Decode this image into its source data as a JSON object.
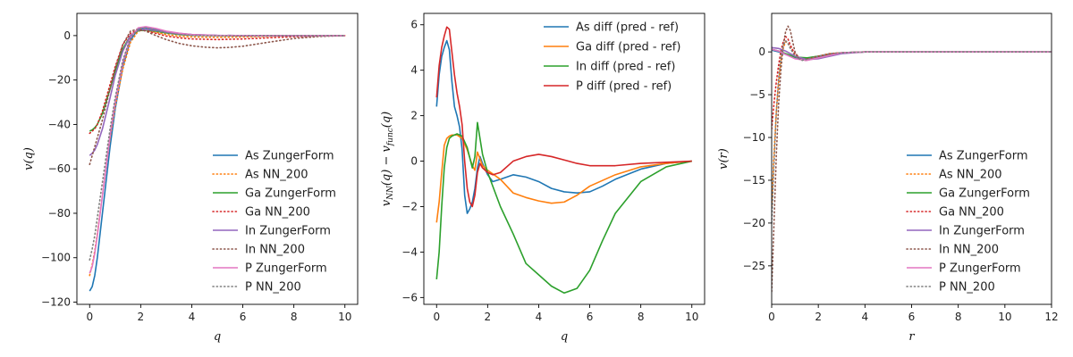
{
  "colors": {
    "blue": "#1f77b4",
    "orange": "#ff7f0e",
    "green": "#2ca02c",
    "red": "#d62728",
    "purple": "#9467bd",
    "brown": "#8c564b",
    "pink": "#e377c2",
    "gray": "#7f7f7f"
  },
  "chart_data": [
    {
      "type": "line",
      "xlabel": "q",
      "ylabel": "v(q)",
      "xlim": [
        -0.5,
        10.5
      ],
      "ylim": [
        -121,
        10
      ],
      "xticks": [
        0,
        2,
        4,
        6,
        8,
        10
      ],
      "yticks": [
        -120,
        -100,
        -80,
        -60,
        -40,
        -20,
        0
      ],
      "legend_position": "lower-right",
      "grid": false,
      "series": [
        {
          "name": "As ZungerForm",
          "color": "blue",
          "dash": "solid",
          "x": [
            0,
            0.1,
            0.2,
            0.3,
            0.5,
            0.8,
            1.0,
            1.3,
            1.6,
            1.9,
            2.2,
            2.6,
            3.0,
            3.5,
            4,
            5,
            6,
            7,
            8,
            9,
            10
          ],
          "y": [
            -115,
            -113,
            -108,
            -100,
            -80,
            -50,
            -33,
            -14,
            -2,
            3,
            3.5,
            2.8,
            1.8,
            1.0,
            0.5,
            0.1,
            0,
            0,
            0,
            0,
            0
          ]
        },
        {
          "name": "As NN_200",
          "color": "orange",
          "dash": "dotted",
          "x": [
            0,
            0.1,
            0.2,
            0.3,
            0.5,
            0.8,
            1.0,
            1.3,
            1.6,
            1.9,
            2.2,
            2.6,
            3.0,
            3.5,
            4,
            5,
            6,
            7,
            8,
            9,
            10
          ],
          "y": [
            -108,
            -103,
            -97,
            -89,
            -72,
            -46,
            -32,
            -15,
            -3,
            2,
            2.5,
            1.5,
            0.5,
            -0.3,
            -0.6,
            -0.8,
            -0.6,
            -0.3,
            -0.1,
            0,
            0
          ]
        },
        {
          "name": "Ga ZungerForm",
          "color": "green",
          "dash": "solid",
          "x": [
            0,
            0.1,
            0.2,
            0.3,
            0.5,
            0.8,
            1.0,
            1.3,
            1.6,
            1.9,
            2.2,
            2.6,
            3.0,
            3.5,
            4,
            5,
            6,
            7,
            8,
            9,
            10
          ],
          "y": [
            -43,
            -42.5,
            -41.5,
            -40,
            -35,
            -24,
            -16,
            -6,
            0,
            2.2,
            2.5,
            2,
            1.2,
            0.5,
            0.2,
            0,
            0,
            0,
            0,
            0,
            0
          ]
        },
        {
          "name": "Ga NN_200",
          "color": "red",
          "dash": "dotted",
          "x": [
            0,
            0.1,
            0.2,
            0.3,
            0.5,
            0.8,
            1.0,
            1.3,
            1.6,
            1.9,
            2.2,
            2.6,
            3.0,
            3.5,
            4,
            5,
            6,
            7,
            8,
            9,
            10
          ],
          "y": [
            -44,
            -43,
            -42,
            -40,
            -34,
            -22,
            -14,
            -4,
            1,
            2.5,
            2.2,
            1.0,
            -0.2,
            -1.0,
            -1.5,
            -1.8,
            -1.5,
            -1,
            -0.5,
            -0.2,
            0
          ]
        },
        {
          "name": "In ZungerForm",
          "color": "purple",
          "dash": "solid",
          "x": [
            0,
            0.1,
            0.2,
            0.3,
            0.5,
            0.8,
            1.0,
            1.3,
            1.6,
            1.9,
            2.2,
            2.6,
            3.0,
            3.5,
            4,
            5,
            6,
            7,
            8,
            9,
            10
          ],
          "y": [
            -54,
            -53,
            -51.5,
            -49,
            -42,
            -28,
            -18,
            -7,
            0,
            2.5,
            2.8,
            2.3,
            1.5,
            0.8,
            0.3,
            0.1,
            0,
            0,
            0,
            0,
            0
          ]
        },
        {
          "name": "In NN_200",
          "color": "brown",
          "dash": "dotted",
          "x": [
            0,
            0.1,
            0.2,
            0.3,
            0.5,
            0.8,
            1.0,
            1.3,
            1.6,
            1.9,
            2.2,
            2.6,
            3.0,
            3.5,
            4,
            4.5,
            5,
            5.5,
            6,
            7,
            8,
            9,
            10
          ],
          "y": [
            -58,
            -54,
            -50,
            -46,
            -38,
            -24,
            -15,
            -4,
            2,
            3,
            2,
            0,
            -1.8,
            -3.5,
            -4.6,
            -5.2,
            -5.5,
            -5.3,
            -4.8,
            -3,
            -1.3,
            -0.4,
            0
          ]
        },
        {
          "name": "P ZungerForm",
          "color": "pink",
          "dash": "solid",
          "x": [
            0,
            0.1,
            0.2,
            0.3,
            0.5,
            0.8,
            1.0,
            1.3,
            1.6,
            1.9,
            2.2,
            2.6,
            3.0,
            3.5,
            4,
            5,
            6,
            7,
            8,
            9,
            10
          ],
          "y": [
            -107,
            -104,
            -98,
            -90,
            -72,
            -45,
            -30,
            -12,
            -1,
            3.5,
            4,
            3.2,
            2,
            1.1,
            0.5,
            0.1,
            0,
            0,
            0,
            0,
            0
          ]
        },
        {
          "name": "P NN_200",
          "color": "gray",
          "dash": "dotted",
          "x": [
            0,
            0.1,
            0.2,
            0.3,
            0.5,
            0.8,
            1.0,
            1.3,
            1.6,
            1.9,
            2.2,
            2.6,
            3.0,
            3.5,
            4,
            5,
            6,
            7,
            8,
            9,
            10
          ],
          "y": [
            -101,
            -96,
            -90,
            -82,
            -66,
            -42,
            -28,
            -11,
            -1,
            3,
            3.5,
            2.5,
            1.3,
            0.5,
            0.1,
            -0.1,
            -0.1,
            0,
            0,
            0,
            0
          ]
        }
      ]
    },
    {
      "type": "line",
      "xlabel": "q",
      "ylabel": "v_NN(q) − v_func(q)",
      "ylabel_parts": {
        "v": "v",
        "sub1": "NN",
        "mid": "(q) − v",
        "sub2": "func",
        "end": "(q)"
      },
      "xlim": [
        -0.5,
        10.5
      ],
      "ylim": [
        -6.3,
        6.5
      ],
      "xticks": [
        0,
        2,
        4,
        6,
        8,
        10
      ],
      "yticks": [
        -6,
        -4,
        -2,
        0,
        2,
        4,
        6
      ],
      "legend_position": "upper-right",
      "grid": false,
      "series": [
        {
          "name": "As diff (pred - ref)",
          "color": "blue",
          "dash": "solid",
          "x": [
            0,
            0.1,
            0.2,
            0.3,
            0.4,
            0.5,
            0.6,
            0.7,
            0.8,
            0.9,
            1.0,
            1.1,
            1.2,
            1.3,
            1.4,
            1.5,
            1.6,
            1.7,
            1.8,
            2.0,
            2.2,
            2.5,
            3.0,
            3.5,
            4,
            4.5,
            5,
            5.5,
            6,
            6.5,
            7,
            8,
            9,
            10
          ],
          "y": [
            2.4,
            3.8,
            4.6,
            5.0,
            5.3,
            4.9,
            3.5,
            2.4,
            2.0,
            1.5,
            0.5,
            -1.5,
            -2.3,
            -2.1,
            -1.8,
            -1.2,
            -0.3,
            0.2,
            -0.1,
            -0.6,
            -0.9,
            -0.8,
            -0.6,
            -0.7,
            -0.9,
            -1.2,
            -1.35,
            -1.4,
            -1.35,
            -1.1,
            -0.8,
            -0.35,
            -0.1,
            0
          ]
        },
        {
          "name": "Ga diff (pred - ref)",
          "color": "orange",
          "dash": "solid",
          "x": [
            0,
            0.1,
            0.2,
            0.3,
            0.4,
            0.5,
            0.6,
            0.8,
            1.0,
            1.2,
            1.4,
            1.5,
            1.6,
            1.8,
            2.0,
            2.5,
            3.0,
            3.5,
            4,
            4.5,
            5,
            5.5,
            6,
            7,
            8,
            9,
            10
          ],
          "y": [
            -2.7,
            -1.8,
            -0.5,
            0.7,
            1.0,
            1.1,
            1.15,
            1.15,
            1.0,
            0.5,
            -0.2,
            -0.4,
            0.4,
            -0.2,
            -0.4,
            -0.8,
            -1.4,
            -1.6,
            -1.75,
            -1.85,
            -1.8,
            -1.5,
            -1.1,
            -0.6,
            -0.25,
            -0.1,
            0
          ]
        },
        {
          "name": "In diff (pred - ref)",
          "color": "green",
          "dash": "solid",
          "x": [
            0,
            0.1,
            0.2,
            0.3,
            0.4,
            0.5,
            0.6,
            0.8,
            1.0,
            1.2,
            1.4,
            1.5,
            1.6,
            1.8,
            2.0,
            2.5,
            3.0,
            3.5,
            4,
            4.5,
            5,
            5.5,
            6,
            6.5,
            7,
            8,
            9,
            10
          ],
          "y": [
            -5.2,
            -4.0,
            -2.0,
            -0.3,
            0.6,
            1.0,
            1.1,
            1.2,
            1.1,
            0.6,
            -0.3,
            0.2,
            1.7,
            0.3,
            -0.5,
            -2.0,
            -3.2,
            -4.5,
            -5.0,
            -5.5,
            -5.8,
            -5.6,
            -4.8,
            -3.5,
            -2.3,
            -0.9,
            -0.25,
            0
          ]
        },
        {
          "name": "P diff (pred - ref)",
          "color": "red",
          "dash": "solid",
          "x": [
            0,
            0.1,
            0.2,
            0.3,
            0.4,
            0.5,
            0.6,
            0.7,
            0.8,
            0.9,
            1.0,
            1.1,
            1.2,
            1.3,
            1.4,
            1.5,
            1.6,
            1.7,
            1.8,
            2.0,
            2.2,
            2.5,
            3.0,
            3.5,
            4,
            4.5,
            5,
            5.5,
            6,
            7,
            8,
            9,
            10
          ],
          "y": [
            2.8,
            4.2,
            5.0,
            5.5,
            5.9,
            5.8,
            4.8,
            3.8,
            3.0,
            2.4,
            1.6,
            0.0,
            -1.2,
            -1.8,
            -2.0,
            -1.5,
            -0.5,
            -0.1,
            -0.3,
            -0.5,
            -0.6,
            -0.5,
            0.0,
            0.2,
            0.3,
            0.2,
            0.05,
            -0.1,
            -0.2,
            -0.2,
            -0.1,
            -0.05,
            0
          ]
        }
      ]
    },
    {
      "type": "line",
      "xlabel": "r",
      "ylabel": "v(r)",
      "xlim": [
        0,
        12
      ],
      "ylim": [
        -29.5,
        4.5
      ],
      "xticks": [
        0,
        2,
        4,
        6,
        8,
        10,
        12
      ],
      "yticks": [
        -25,
        -20,
        -15,
        -10,
        -5,
        0
      ],
      "legend_position": "lower-right",
      "grid": false,
      "series": [
        {
          "name": "As ZungerForm",
          "color": "blue",
          "dash": "solid",
          "x": [
            0,
            0.3,
            0.6,
            1.0,
            1.5,
            2.0,
            2.5,
            3.0,
            4.0,
            6,
            8,
            10,
            12
          ],
          "y": [
            0.2,
            0.0,
            -0.3,
            -0.7,
            -0.8,
            -0.6,
            -0.3,
            -0.1,
            0,
            0,
            0,
            0,
            0
          ]
        },
        {
          "name": "As NN_200",
          "color": "orange",
          "dash": "dotted",
          "x": [
            0,
            0.1,
            0.2,
            0.3,
            0.4,
            0.5,
            0.6,
            0.7,
            0.8,
            1.0,
            1.3,
            1.6,
            2.0,
            2.5,
            3,
            4,
            6,
            8,
            10,
            12
          ],
          "y": [
            -18,
            -12,
            -7,
            -3.5,
            -1,
            0.5,
            1.2,
            1.0,
            0.5,
            -0.3,
            -0.8,
            -0.7,
            -0.5,
            -0.2,
            -0.1,
            0,
            0,
            0,
            0,
            0
          ]
        },
        {
          "name": "Ga ZungerForm",
          "color": "green",
          "dash": "solid",
          "x": [
            0,
            0.3,
            0.6,
            1.0,
            1.5,
            2.0,
            2.5,
            3.0,
            4.0,
            6,
            8,
            10,
            12
          ],
          "y": [
            0.3,
            0.1,
            -0.2,
            -0.6,
            -0.7,
            -0.5,
            -0.3,
            -0.1,
            0,
            0,
            0,
            0,
            0
          ]
        },
        {
          "name": "Ga NN_200",
          "color": "red",
          "dash": "dotted",
          "x": [
            0,
            0.1,
            0.2,
            0.3,
            0.4,
            0.5,
            0.6,
            0.7,
            0.8,
            1.0,
            1.3,
            1.6,
            2.0,
            2.5,
            3,
            4,
            6,
            8,
            10,
            12
          ],
          "y": [
            -9,
            -6,
            -3.5,
            -1.5,
            0.2,
            1.2,
            1.8,
            1.5,
            0.8,
            -0.3,
            -0.9,
            -0.8,
            -0.5,
            -0.2,
            -0.1,
            0,
            0,
            0,
            0,
            0
          ]
        },
        {
          "name": "In ZungerForm",
          "color": "purple",
          "dash": "solid",
          "x": [
            0,
            0.3,
            0.6,
            1.0,
            1.5,
            2.0,
            2.5,
            3.0,
            4.0,
            6,
            8,
            10,
            12
          ],
          "y": [
            0.5,
            0.4,
            0.1,
            -0.5,
            -0.9,
            -0.8,
            -0.5,
            -0.2,
            0,
            0,
            0,
            0,
            0
          ]
        },
        {
          "name": "In NN_200",
          "color": "brown",
          "dash": "dotted",
          "x": [
            0,
            0.1,
            0.2,
            0.3,
            0.4,
            0.5,
            0.6,
            0.7,
            0.8,
            0.9,
            1.0,
            1.2,
            1.5,
            2.0,
            2.5,
            3,
            4,
            6,
            8,
            10,
            12
          ],
          "y": [
            -28,
            -20,
            -12,
            -6,
            -2,
            0.8,
            2.4,
            3.0,
            2.5,
            1.2,
            0,
            -0.9,
            -1.0,
            -0.6,
            -0.3,
            -0.1,
            0,
            0,
            0,
            0,
            0
          ]
        },
        {
          "name": "P ZungerForm",
          "color": "pink",
          "dash": "solid",
          "x": [
            0,
            0.3,
            0.6,
            1.0,
            1.5,
            2.0,
            2.5,
            3.0,
            4.0,
            6,
            8,
            10,
            12
          ],
          "y": [
            0.3,
            0.1,
            -0.3,
            -0.8,
            -1.0,
            -0.7,
            -0.4,
            -0.1,
            0,
            0,
            0,
            0,
            0
          ]
        },
        {
          "name": "P NN_200",
          "color": "gray",
          "dash": "dotted",
          "x": [
            0,
            0.1,
            0.2,
            0.3,
            0.4,
            0.5,
            0.6,
            0.7,
            0.8,
            1.0,
            1.3,
            1.6,
            2.0,
            2.5,
            3,
            4,
            6,
            8,
            10,
            12
          ],
          "y": [
            -20,
            -13,
            -7,
            -3,
            -0.5,
            0.8,
            1.3,
            1.0,
            0.4,
            -0.5,
            -1.0,
            -0.8,
            -0.5,
            -0.2,
            -0.1,
            0,
            0,
            0,
            0,
            0
          ]
        }
      ]
    }
  ]
}
